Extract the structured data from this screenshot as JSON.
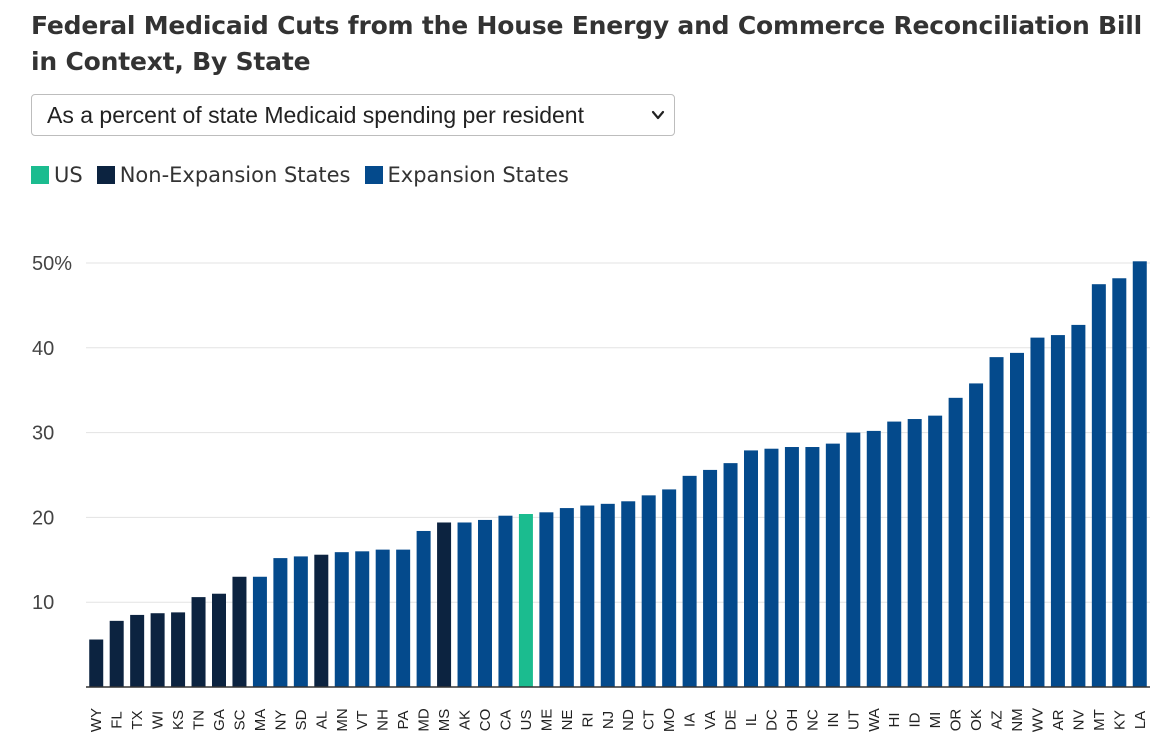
{
  "title": "Federal Medicaid Cuts from the House Energy and Commerce Reconciliation Bill in Context, By State",
  "dropdown": {
    "selected": "As a percent of state Medicaid spending per resident"
  },
  "legend": [
    {
      "label": "US",
      "color": "#1bbc8f"
    },
    {
      "label": "Non-Expansion States",
      "color": "#0c2340"
    },
    {
      "label": "Expansion States",
      "color": "#044a8c"
    }
  ],
  "colors": {
    "US": "#1bbc8f",
    "non_expansion": "#0c2340",
    "expansion": "#044a8c",
    "grid": "#e3e3e3",
    "axis": "#333333"
  },
  "chart_data": {
    "type": "bar",
    "title": "",
    "xlabel": "",
    "ylabel": "",
    "ylim": [
      0,
      50
    ],
    "yticks": [
      10,
      20,
      30,
      40,
      50
    ],
    "ytick_labels": [
      "10",
      "20",
      "30",
      "40",
      "50%"
    ],
    "grid": true,
    "categories": [
      "WY",
      "FL",
      "TX",
      "WI",
      "KS",
      "TN",
      "GA",
      "SC",
      "MA",
      "NY",
      "SD",
      "AL",
      "MN",
      "VT",
      "NH",
      "PA",
      "MD",
      "MS",
      "AK",
      "CO",
      "CA",
      "US",
      "ME",
      "NE",
      "RI",
      "NJ",
      "ND",
      "CT",
      "MO",
      "IA",
      "VA",
      "DE",
      "IL",
      "DC",
      "OH",
      "NC",
      "IN",
      "UT",
      "WA",
      "HI",
      "ID",
      "MI",
      "OR",
      "OK",
      "AZ",
      "NM",
      "WV",
      "AR",
      "NV",
      "MT",
      "KY",
      "LA"
    ],
    "values": [
      5.6,
      7.8,
      8.5,
      8.7,
      8.8,
      10.6,
      11.0,
      13.0,
      13.0,
      15.2,
      15.4,
      15.6,
      15.9,
      16.0,
      16.2,
      16.2,
      18.4,
      19.4,
      19.4,
      19.7,
      20.2,
      20.4,
      20.6,
      21.1,
      21.4,
      21.6,
      21.9,
      22.6,
      23.3,
      24.9,
      25.6,
      26.4,
      27.9,
      28.1,
      28.3,
      28.3,
      28.7,
      30.0,
      30.2,
      31.3,
      31.6,
      32.0,
      34.1,
      35.8,
      38.9,
      39.4,
      41.2,
      41.5,
      42.7,
      47.5,
      48.2,
      50.2
    ],
    "group": [
      "non",
      "non",
      "non",
      "non",
      "non",
      "non",
      "non",
      "non",
      "exp",
      "exp",
      "exp",
      "non",
      "exp",
      "exp",
      "exp",
      "exp",
      "exp",
      "non",
      "exp",
      "exp",
      "exp",
      "us",
      "exp",
      "exp",
      "exp",
      "exp",
      "exp",
      "exp",
      "exp",
      "exp",
      "exp",
      "exp",
      "exp",
      "exp",
      "exp",
      "exp",
      "exp",
      "exp",
      "exp",
      "exp",
      "exp",
      "exp",
      "exp",
      "exp",
      "exp",
      "exp",
      "exp",
      "exp",
      "exp",
      "exp",
      "exp",
      "exp"
    ]
  }
}
